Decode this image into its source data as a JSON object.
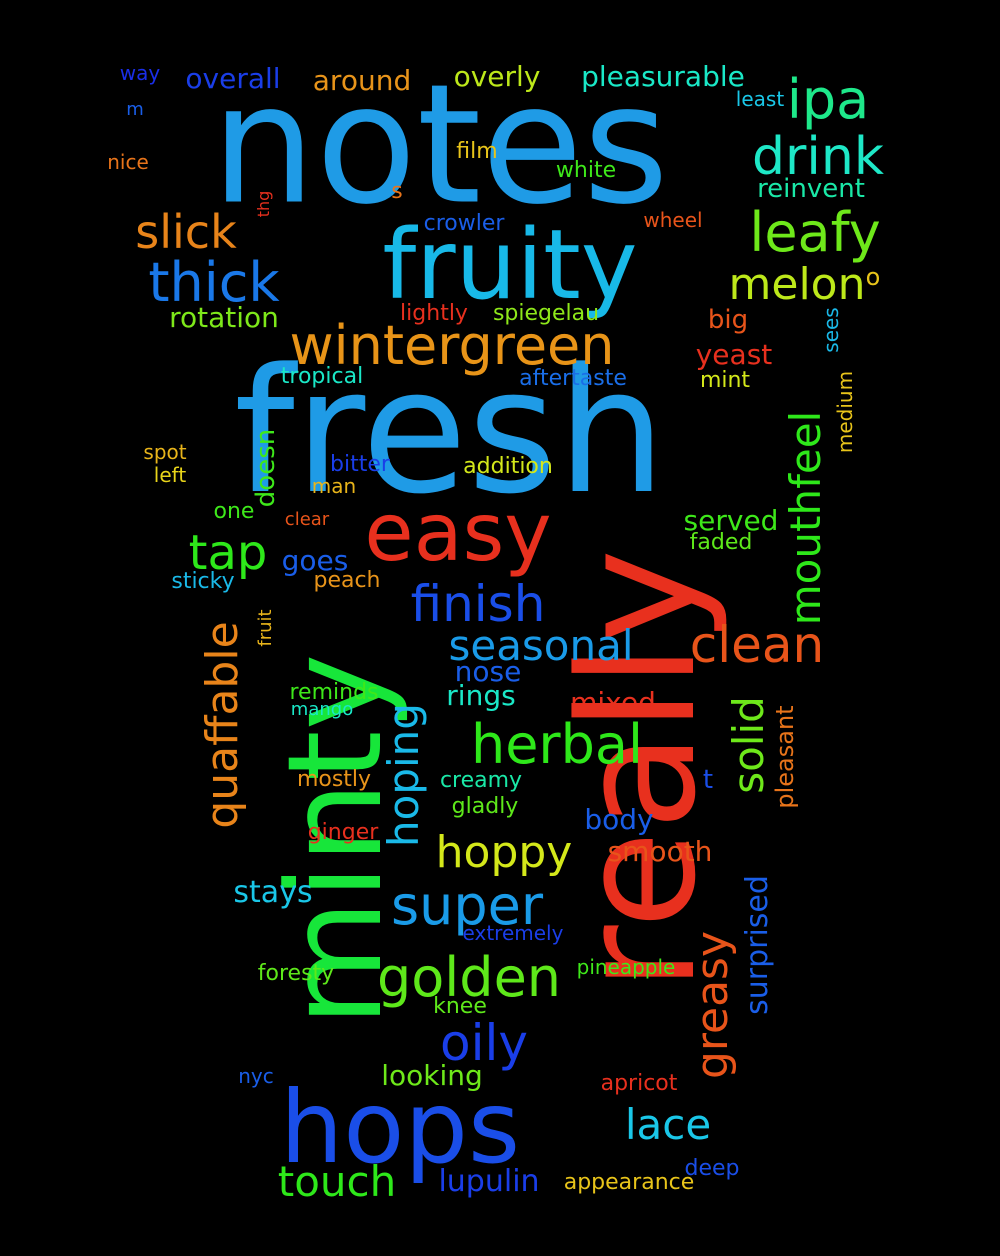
{
  "words": [
    {
      "text": "notes",
      "color": "#1f9be6",
      "vertical": false
    },
    {
      "text": "fresh",
      "color": "#1f9be6",
      "vertical": false
    },
    {
      "text": "really",
      "color": "#e8301e",
      "vertical": true
    },
    {
      "text": "minty",
      "color": "#17e63a",
      "vertical": true
    },
    {
      "text": "fruity",
      "color": "#18b9e8",
      "vertical": false
    },
    {
      "text": "hops",
      "color": "#1a4ee8",
      "vertical": false
    },
    {
      "text": "easy",
      "color": "#e8301e",
      "vertical": false
    },
    {
      "text": "wintergreen",
      "color": "#e89418",
      "vertical": false
    },
    {
      "text": "ipa",
      "color": "#1ee88a",
      "vertical": false
    },
    {
      "text": "drink",
      "color": "#1ee8c7",
      "vertical": false
    },
    {
      "text": "leafy",
      "color": "#6ee81a",
      "vertical": false
    },
    {
      "text": "thick",
      "color": "#1a78e8",
      "vertical": false
    },
    {
      "text": "slick",
      "color": "#e8841a",
      "vertical": false
    },
    {
      "text": "melon",
      "color": "#bde81a",
      "vertical": false
    },
    {
      "text": "tap",
      "color": "#2ee81a",
      "vertical": false
    },
    {
      "text": "finish",
      "color": "#1a4ee8",
      "vertical": false
    },
    {
      "text": "seasonal",
      "color": "#1a9be8",
      "vertical": false
    },
    {
      "text": "clean",
      "color": "#e8541a",
      "vertical": false
    },
    {
      "text": "herbal",
      "color": "#2ee81a",
      "vertical": false
    },
    {
      "text": "mouthfeel",
      "color": "#2ee81a",
      "vertical": true
    },
    {
      "text": "hoppy",
      "color": "#d4e81a",
      "vertical": false
    },
    {
      "text": "super",
      "color": "#1a9be8",
      "vertical": false
    },
    {
      "text": "golden",
      "color": "#5ee81a",
      "vertical": false
    },
    {
      "text": "oily",
      "color": "#1a3ee8",
      "vertical": false
    },
    {
      "text": "hoping",
      "color": "#1ab9e8",
      "vertical": true
    },
    {
      "text": "quaffable",
      "color": "#e8841a",
      "vertical": true
    },
    {
      "text": "solid",
      "color": "#6ee81a",
      "vertical": true
    },
    {
      "text": "greasy",
      "color": "#e8541a",
      "vertical": true
    },
    {
      "text": "lace",
      "color": "#1ac7e8",
      "vertical": false
    },
    {
      "text": "touch",
      "color": "#2ee81a",
      "vertical": false
    },
    {
      "text": "surprised",
      "color": "#1a5ee8",
      "vertical": true
    },
    {
      "text": "overall",
      "color": "#1a3ee8",
      "vertical": false
    },
    {
      "text": "around",
      "color": "#e8941a",
      "vertical": false
    },
    {
      "text": "overly",
      "color": "#bde81a",
      "vertical": false
    },
    {
      "text": "pleasurable",
      "color": "#1ae8c7",
      "vertical": false
    },
    {
      "text": "way",
      "color": "#1a2ee8",
      "vertical": false
    },
    {
      "text": "least",
      "color": "#1ac7e8",
      "vertical": false
    },
    {
      "text": "reinvent",
      "color": "#1ae8a7",
      "vertical": false
    },
    {
      "text": "m",
      "color": "#1a5ee8",
      "vertical": false
    },
    {
      "text": "nice",
      "color": "#e8741a",
      "vertical": false
    },
    {
      "text": "film",
      "color": "#e8c41a",
      "vertical": false
    },
    {
      "text": "white",
      "color": "#3ee81a",
      "vertical": false
    },
    {
      "text": "s",
      "color": "#e8741a",
      "vertical": false
    },
    {
      "text": "thg",
      "color": "#e8301e",
      "vertical": true
    },
    {
      "text": "crowler",
      "color": "#1a5ee8",
      "vertical": false
    },
    {
      "text": "wheel",
      "color": "#e8541a",
      "vertical": false
    },
    {
      "text": "o",
      "color": "#e8c41a",
      "vertical": false
    },
    {
      "text": "rotation",
      "color": "#7ee81a",
      "vertical": false
    },
    {
      "text": "lightly",
      "color": "#e8301e",
      "vertical": false
    },
    {
      "text": "spiegelau",
      "color": "#8ee81a",
      "vertical": false
    },
    {
      "text": "big",
      "color": "#e8541a",
      "vertical": false
    },
    {
      "text": "sees",
      "color": "#1ab9e8",
      "vertical": true
    },
    {
      "text": "yeast",
      "color": "#e8301e",
      "vertical": false
    },
    {
      "text": "tropical",
      "color": "#1ae8c7",
      "vertical": false
    },
    {
      "text": "aftertaste",
      "color": "#1a6ee8",
      "vertical": false
    },
    {
      "text": "mint",
      "color": "#d4e81a",
      "vertical": false
    },
    {
      "text": "medium",
      "color": "#e8c41a",
      "vertical": true
    },
    {
      "text": "doesn",
      "color": "#3ee81a",
      "vertical": true
    },
    {
      "text": "spot",
      "color": "#e8b41a",
      "vertical": false
    },
    {
      "text": "bitter",
      "color": "#1a3ee8",
      "vertical": false
    },
    {
      "text": "addition",
      "color": "#d4e81a",
      "vertical": false
    },
    {
      "text": "left",
      "color": "#e8d41a",
      "vertical": false
    },
    {
      "text": "man",
      "color": "#e8b41a",
      "vertical": false
    },
    {
      "text": "one",
      "color": "#3ee81a",
      "vertical": false
    },
    {
      "text": "clear",
      "color": "#e8541a",
      "vertical": false
    },
    {
      "text": "served",
      "color": "#3ee81a",
      "vertical": false
    },
    {
      "text": "faded",
      "color": "#5ee81a",
      "vertical": false
    },
    {
      "text": "goes",
      "color": "#1a5ee8",
      "vertical": false
    },
    {
      "text": "sticky",
      "color": "#1ab9e8",
      "vertical": false
    },
    {
      "text": "peach",
      "color": "#e8941a",
      "vertical": false
    },
    {
      "text": "fruit",
      "color": "#e8b41a",
      "vertical": true
    },
    {
      "text": "nose",
      "color": "#1a5ee8",
      "vertical": false
    },
    {
      "text": "rings",
      "color": "#1ae8c7",
      "vertical": false
    },
    {
      "text": "reminds",
      "color": "#3ee81a",
      "vertical": false
    },
    {
      "text": "mango",
      "color": "#1ae8c7",
      "vertical": false
    },
    {
      "text": "mixed",
      "color": "#e8301e",
      "vertical": false
    },
    {
      "text": "pleasant",
      "color": "#e8741a",
      "vertical": true
    },
    {
      "text": "mostly",
      "color": "#e8941a",
      "vertical": false
    },
    {
      "text": "creamy",
      "color": "#1ae8a7",
      "vertical": false
    },
    {
      "text": "t",
      "color": "#1a4ee8",
      "vertical": false
    },
    {
      "text": "gladly",
      "color": "#5ee81a",
      "vertical": false
    },
    {
      "text": "body",
      "color": "#1a5ee8",
      "vertical": false
    },
    {
      "text": "ginger",
      "color": "#e8301e",
      "vertical": false
    },
    {
      "text": "smooth",
      "color": "#e8541a",
      "vertical": false
    },
    {
      "text": "stays",
      "color": "#1ac7e8",
      "vertical": false
    },
    {
      "text": "extremely",
      "color": "#1a3ee8",
      "vertical": false
    },
    {
      "text": "foresty",
      "color": "#5ee81a",
      "vertical": false
    },
    {
      "text": "pineapple",
      "color": "#3ee81a",
      "vertical": false
    },
    {
      "text": "knee",
      "color": "#5ee81a",
      "vertical": false
    },
    {
      "text": "nyc",
      "color": "#1a5ee8",
      "vertical": false
    },
    {
      "text": "looking",
      "color": "#6ee81a",
      "vertical": false
    },
    {
      "text": "apricot",
      "color": "#e8301e",
      "vertical": false
    },
    {
      "text": "lupulin",
      "color": "#1a3ee8",
      "vertical": false
    },
    {
      "text": "deep",
      "color": "#1a4ee8",
      "vertical": false
    },
    {
      "text": "appearance",
      "color": "#e8c41a",
      "vertical": false
    }
  ]
}
